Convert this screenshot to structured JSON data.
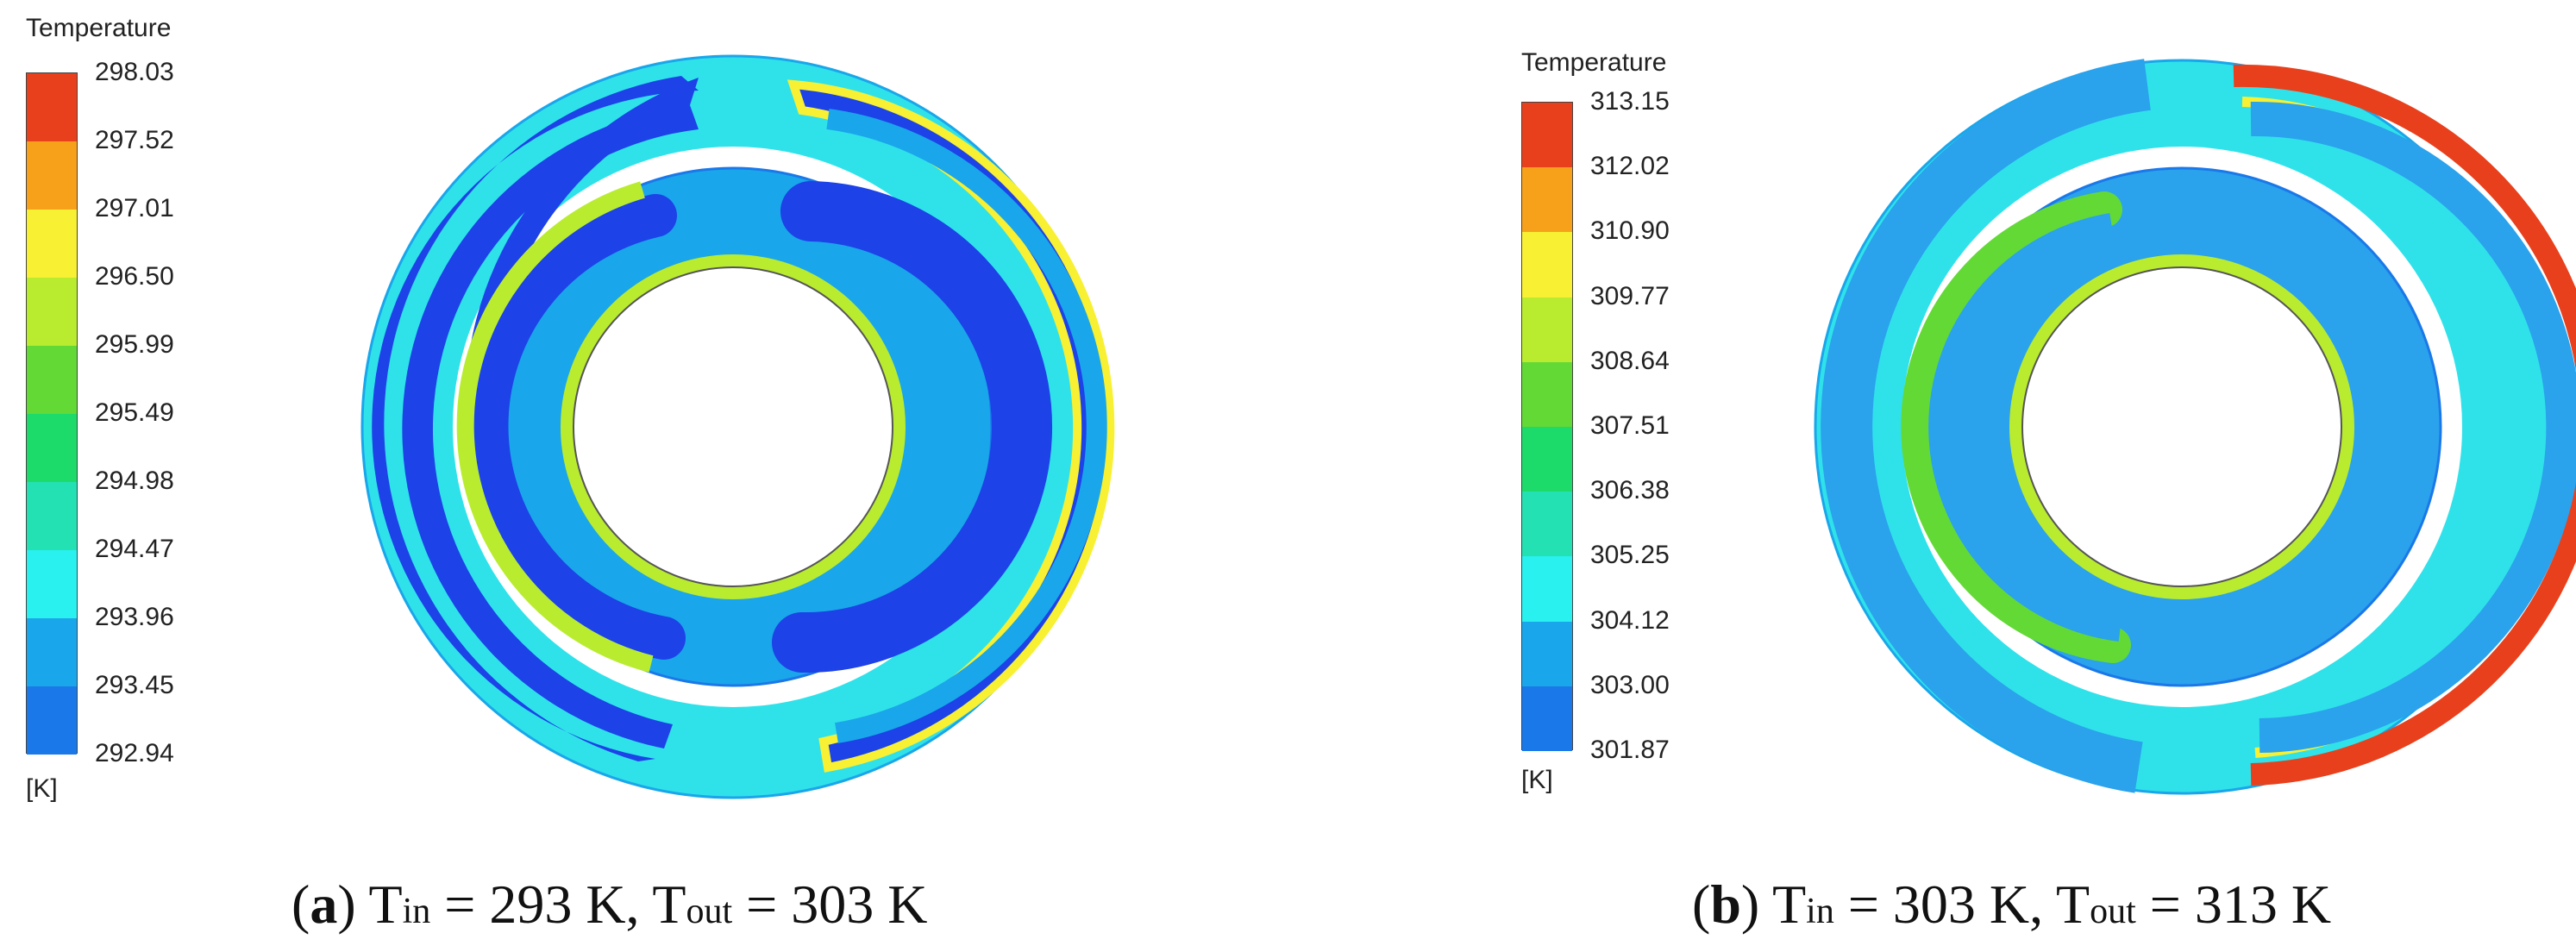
{
  "panels": [
    {
      "id": "a",
      "legend": {
        "title": "Temperature",
        "unit": "[K]",
        "values": [
          "298.03",
          "297.52",
          "297.01",
          "296.50",
          "295.99",
          "295.49",
          "294.98",
          "294.47",
          "293.96",
          "293.45",
          "292.94"
        ]
      },
      "caption": {
        "letter": "a",
        "t1": "T",
        "s1": "in",
        "eq1": " = 293 K, ",
        "t2": "T",
        "s2": "out",
        "eq2": " = 303 K"
      }
    },
    {
      "id": "b",
      "legend": {
        "title": "Temperature",
        "unit": "[K]",
        "values": [
          "313.15",
          "312.02",
          "310.90",
          "309.77",
          "308.64",
          "307.51",
          "306.38",
          "305.25",
          "304.12",
          "303.00",
          "301.87"
        ]
      },
      "caption": {
        "letter": "b",
        "t1": "T",
        "s1": "in",
        "eq1": " = 303 K, ",
        "t2": "T",
        "s2": "out",
        "eq2": " = 313 K"
      }
    }
  ],
  "colorbar": [
    "#e8401c",
    "#f7a11a",
    "#f8f032",
    "#b9ec2f",
    "#63d936",
    "#1ddb6b",
    "#24e1b4",
    "#28f1ef",
    "#1aa6ea",
    "#1a78e9",
    "#1d3fe2"
  ],
  "colors": {
    "ring_bg_a": "#2fe2ea",
    "channel_a": "#1c42e8",
    "ring_bg_b": "#2fe2ea",
    "channel_b": "#2aa2ec"
  }
}
